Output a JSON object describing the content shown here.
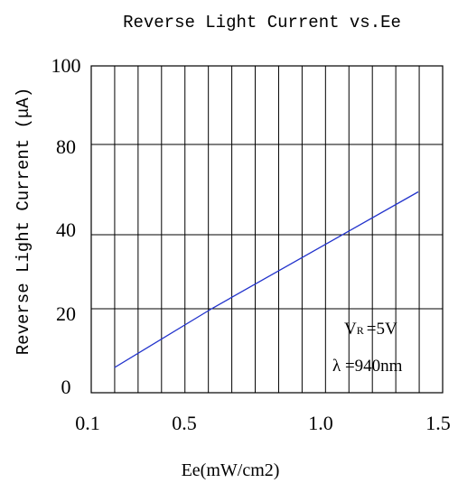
{
  "chart_data": {
    "type": "line",
    "title": "Reverse Light Current vs.Ee",
    "xlabel": "Ee(mW/cm2)",
    "ylabel": "Reverse Light Current (μA)",
    "x_tick_labels": [
      "0.1",
      "0.5",
      "1.0",
      "1.5"
    ],
    "y_tick_labels": [
      "0",
      "20",
      "40",
      "80",
      "100"
    ],
    "grid": true,
    "series": [
      {
        "color": "#2233cc",
        "x": [
          0.2,
          0.6,
          1.4
        ],
        "y": [
          6,
          20,
          59
        ]
      }
    ],
    "annotations": {
      "vr_symbol": "V",
      "vr_subscript": "R",
      "vr_value": "=5V",
      "lambda": "λ =940nm"
    }
  }
}
